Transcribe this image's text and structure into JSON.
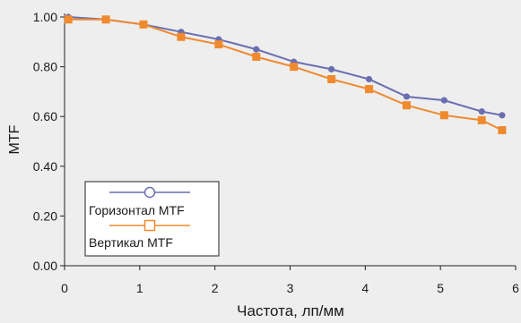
{
  "chart_data": {
    "type": "line",
    "xlabel": "Частота, лп/мм",
    "ylabel": "MTF",
    "xlim": [
      0,
      6
    ],
    "ylim": [
      0,
      1.0
    ],
    "x_ticks": [
      "0",
      "1",
      "2",
      "3",
      "4",
      "5",
      "6"
    ],
    "y_ticks": [
      "0.00",
      "0.20",
      "0.40",
      "0.60",
      "0.80",
      "1.00"
    ],
    "grid": false,
    "legend_position": "bottom-left",
    "series": [
      {
        "name": "Горизонтал MTF",
        "color": "#6a6fb0",
        "marker": "circle",
        "x": [
          0.05,
          0.55,
          1.05,
          1.55,
          2.05,
          2.55,
          3.05,
          3.55,
          4.05,
          4.55,
          5.05,
          5.55,
          5.82
        ],
        "y": [
          1.0,
          0.99,
          0.97,
          0.94,
          0.91,
          0.87,
          0.82,
          0.79,
          0.75,
          0.68,
          0.665,
          0.62,
          0.605
        ]
      },
      {
        "name": "Вертикал MTF",
        "color": "#f08a2e",
        "marker": "square",
        "x": [
          0.05,
          0.55,
          1.05,
          1.55,
          2.05,
          2.55,
          3.05,
          3.55,
          4.05,
          4.55,
          5.05,
          5.55,
          5.82
        ],
        "y": [
          0.99,
          0.99,
          0.97,
          0.92,
          0.89,
          0.84,
          0.8,
          0.75,
          0.71,
          0.645,
          0.605,
          0.585,
          0.545
        ]
      }
    ]
  }
}
